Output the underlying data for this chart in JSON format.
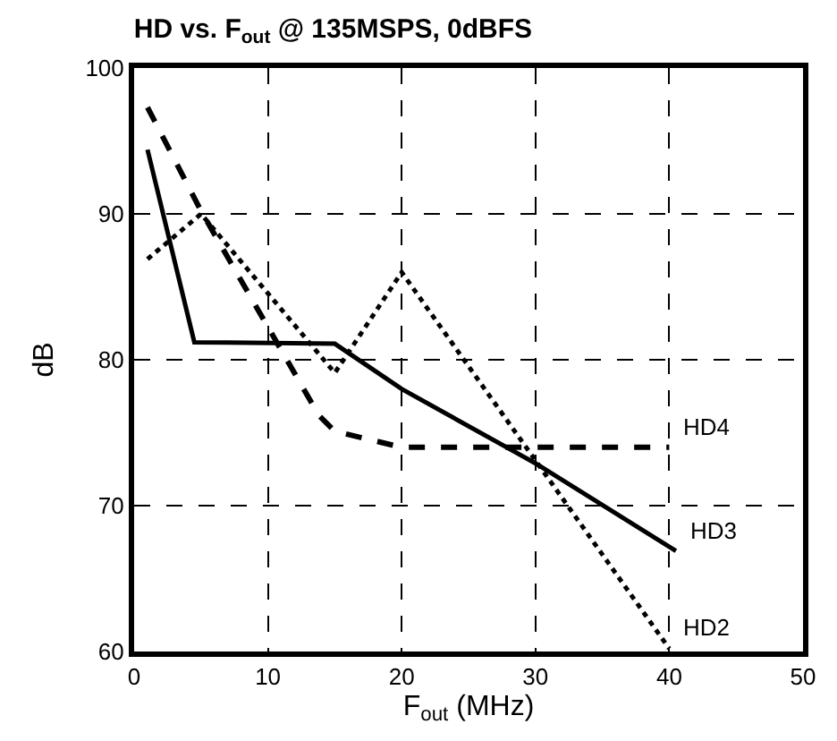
{
  "chart_data": {
    "type": "line",
    "title": "HD vs. F$_{out}$ @ 135MSPS, 0dBFS",
    "xlabel": "F$_{out}$ (MHz)",
    "ylabel": "dB",
    "xlim": [
      0,
      50
    ],
    "xticks": [
      0,
      10,
      20,
      30,
      40,
      50
    ],
    "ylim": [
      60,
      100
    ],
    "yticks": [
      60,
      70,
      80,
      90,
      100
    ],
    "grid": true,
    "legend": false,
    "marker": "none",
    "series": [
      {
        "name": "HD4",
        "color": "#000000",
        "line_style": "dashed",
        "x": [
          1,
          5,
          13.8,
          15,
          20,
          40
        ],
        "values": [
          97.3,
          90.2,
          76.2,
          75.1,
          74,
          74
        ]
      },
      {
        "name": "HD3",
        "color": "#000000",
        "line_style": "solid",
        "x": [
          1,
          4.5,
          15,
          20,
          30,
          40.5
        ],
        "values": [
          94.4,
          81.2,
          81.1,
          78,
          72.9,
          66.9
        ]
      },
      {
        "name": "HD2",
        "color": "#000000",
        "line_style": "dotted",
        "x": [
          1,
          5,
          15,
          20,
          40
        ],
        "values": [
          86.9,
          90,
          79.1,
          86,
          60.2
        ]
      }
    ]
  }
}
